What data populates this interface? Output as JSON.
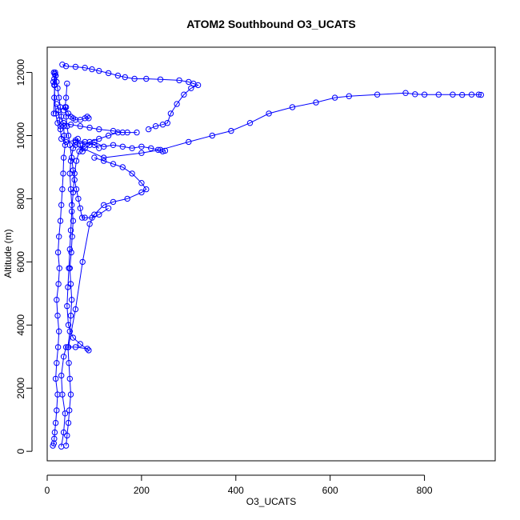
{
  "chart_data": {
    "type": "scatter",
    "title": "ATOM2 Southbound O3_UCATS",
    "xlabel": "O3_UCATS",
    "ylabel": "Altitude (m)",
    "xlim": [
      0,
      950
    ],
    "ylim": [
      -300,
      12800
    ],
    "xticks": [
      0,
      200,
      400,
      600,
      800
    ],
    "yticks": [
      0,
      2000,
      4000,
      6000,
      8000,
      10000,
      12000
    ],
    "grid": false,
    "legend": "none",
    "marker": "open-circle",
    "connected": true,
    "series_color": "#0000ff",
    "series": [
      {
        "points": [
          [
            12,
            180
          ],
          [
            14,
            250
          ],
          [
            15,
            400
          ],
          [
            16,
            600
          ],
          [
            18,
            900
          ],
          [
            20,
            1300
          ],
          [
            22,
            1800
          ],
          [
            18,
            2300
          ],
          [
            20,
            2800
          ],
          [
            23,
            3300
          ],
          [
            25,
            3800
          ],
          [
            22,
            4300
          ],
          [
            20,
            4800
          ],
          [
            24,
            5300
          ],
          [
            26,
            5800
          ],
          [
            23,
            6300
          ],
          [
            25,
            6800
          ],
          [
            28,
            7300
          ],
          [
            30,
            7800
          ],
          [
            32,
            8300
          ],
          [
            34,
            8800
          ],
          [
            35,
            9300
          ],
          [
            38,
            9700
          ],
          [
            36,
            10000
          ],
          [
            35,
            10300
          ],
          [
            30,
            10600
          ],
          [
            28,
            10900
          ],
          [
            25,
            11200
          ],
          [
            22,
            11500
          ],
          [
            20,
            11700
          ],
          [
            18,
            11900
          ],
          [
            17,
            12000
          ],
          [
            16,
            11600
          ],
          [
            15,
            11200
          ],
          [
            14,
            10700
          ]
        ]
      },
      {
        "points": [
          [
            40,
            180
          ],
          [
            42,
            500
          ],
          [
            45,
            900
          ],
          [
            47,
            1300
          ],
          [
            50,
            1800
          ],
          [
            48,
            2300
          ],
          [
            46,
            2800
          ],
          [
            44,
            3300
          ],
          [
            48,
            3800
          ],
          [
            50,
            4300
          ],
          [
            52,
            4800
          ],
          [
            50,
            5300
          ],
          [
            48,
            5800
          ],
          [
            51,
            6300
          ],
          [
            53,
            6800
          ],
          [
            55,
            7300
          ],
          [
            52,
            7800
          ],
          [
            50,
            8300
          ],
          [
            48,
            8800
          ],
          [
            50,
            9200
          ],
          [
            55,
            9600
          ],
          [
            60,
            9800
          ],
          [
            65,
            9900
          ],
          [
            70,
            9700
          ],
          [
            75,
            9500
          ],
          [
            80,
            9600
          ],
          [
            90,
            9700
          ],
          [
            100,
            9800
          ],
          [
            120,
            9650
          ],
          [
            140,
            9700
          ],
          [
            160,
            9650
          ],
          [
            180,
            9600
          ],
          [
            200,
            9650
          ],
          [
            220,
            9600
          ],
          [
            235,
            9550
          ],
          [
            245,
            9500
          ],
          [
            250,
            9520
          ]
        ]
      },
      {
        "points": [
          [
            32,
            12250
          ],
          [
            40,
            12200
          ],
          [
            60,
            12180
          ],
          [
            80,
            12150
          ],
          [
            95,
            12100
          ],
          [
            110,
            12050
          ],
          [
            130,
            11980
          ],
          [
            150,
            11900
          ],
          [
            165,
            11850
          ],
          [
            185,
            11800
          ],
          [
            210,
            11800
          ],
          [
            240,
            11780
          ],
          [
            280,
            11750
          ],
          [
            300,
            11700
          ],
          [
            310,
            11650
          ],
          [
            320,
            11600
          ],
          [
            305,
            11500
          ],
          [
            290,
            11300
          ],
          [
            275,
            11000
          ],
          [
            262,
            10700
          ],
          [
            255,
            10400
          ],
          [
            245,
            10350
          ],
          [
            230,
            10300
          ],
          [
            215,
            10200
          ]
        ]
      },
      {
        "points": [
          [
            60,
            9700
          ],
          [
            120,
            9300
          ],
          [
            200,
            9450
          ],
          [
            240,
            9550
          ],
          [
            300,
            9800
          ],
          [
            350,
            10000
          ],
          [
            390,
            10150
          ],
          [
            430,
            10400
          ],
          [
            470,
            10700
          ],
          [
            520,
            10900
          ],
          [
            570,
            11050
          ],
          [
            610,
            11200
          ],
          [
            640,
            11250
          ],
          [
            700,
            11300
          ],
          [
            760,
            11350
          ],
          [
            780,
            11310
          ],
          [
            800,
            11300
          ],
          [
            830,
            11300
          ],
          [
            860,
            11300
          ],
          [
            880,
            11290
          ],
          [
            900,
            11300
          ],
          [
            915,
            11300
          ],
          [
            920,
            11290
          ]
        ]
      },
      {
        "points": [
          [
            30,
            150
          ],
          [
            35,
            600
          ],
          [
            38,
            1200
          ],
          [
            32,
            1800
          ],
          [
            30,
            2400
          ],
          [
            35,
            3000
          ],
          [
            40,
            3300
          ],
          [
            60,
            3300
          ],
          [
            85,
            3250
          ],
          [
            88,
            3200
          ],
          [
            70,
            3400
          ],
          [
            55,
            3600
          ],
          [
            45,
            4000
          ],
          [
            42,
            4600
          ],
          [
            44,
            5200
          ],
          [
            46,
            5800
          ],
          [
            48,
            6400
          ],
          [
            50,
            7000
          ],
          [
            52,
            7600
          ],
          [
            55,
            8200
          ],
          [
            58,
            8800
          ],
          [
            62,
            9200
          ],
          [
            68,
            9500
          ],
          [
            75,
            9700
          ],
          [
            90,
            9800
          ],
          [
            110,
            9900
          ],
          [
            130,
            10000
          ],
          [
            150,
            10100
          ],
          [
            170,
            10100
          ],
          [
            190,
            10100
          ]
        ]
      },
      {
        "points": [
          [
            45,
            3300
          ],
          [
            60,
            4500
          ],
          [
            75,
            6000
          ],
          [
            90,
            7200
          ],
          [
            100,
            7500
          ],
          [
            120,
            7800
          ],
          [
            140,
            7900
          ],
          [
            170,
            8000
          ],
          [
            200,
            8200
          ],
          [
            210,
            8300
          ],
          [
            200,
            8500
          ],
          [
            180,
            8800
          ],
          [
            160,
            9000
          ],
          [
            140,
            9100
          ],
          [
            120,
            9200
          ],
          [
            100,
            9300
          ]
        ]
      },
      {
        "points": [
          [
            35,
            10800
          ],
          [
            40,
            10900
          ],
          [
            45,
            10700
          ],
          [
            50,
            10600
          ],
          [
            55,
            10550
          ],
          [
            60,
            10500
          ],
          [
            70,
            10500
          ],
          [
            80,
            10550
          ],
          [
            85,
            10600
          ],
          [
            88,
            10550
          ]
        ]
      },
      {
        "points": [
          [
            20,
            11000
          ],
          [
            24,
            10800
          ],
          [
            26,
            10500
          ],
          [
            28,
            10200
          ],
          [
            30,
            9900
          ],
          [
            40,
            9800
          ],
          [
            60,
            9850
          ],
          [
            80,
            9800
          ],
          [
            100,
            9700
          ],
          [
            110,
            9600
          ]
        ]
      },
      {
        "points": [
          [
            42,
            11650
          ],
          [
            40,
            11200
          ],
          [
            38,
            10900
          ],
          [
            40,
            10600
          ],
          [
            42,
            10300
          ],
          [
            45,
            10000
          ],
          [
            48,
            9700
          ],
          [
            52,
            9300
          ],
          [
            55,
            8900
          ],
          [
            58,
            8600
          ],
          [
            62,
            8300
          ],
          [
            66,
            8000
          ],
          [
            70,
            7700
          ],
          [
            74,
            7400
          ],
          [
            80,
            7400
          ],
          [
            95,
            7400
          ],
          [
            110,
            7500
          ],
          [
            130,
            7700
          ]
        ]
      },
      {
        "points": [
          [
            14,
            12000
          ],
          [
            16,
            11950
          ],
          [
            18,
            11900
          ],
          [
            15,
            11800
          ],
          [
            13,
            11700
          ],
          [
            15,
            11600
          ],
          [
            18,
            10700
          ],
          [
            22,
            10400
          ],
          [
            28,
            10300
          ],
          [
            35,
            10400
          ],
          [
            50,
            10350
          ],
          [
            70,
            10300
          ],
          [
            90,
            10250
          ],
          [
            110,
            10200
          ],
          [
            140,
            10150
          ],
          [
            160,
            10100
          ]
        ]
      }
    ]
  }
}
